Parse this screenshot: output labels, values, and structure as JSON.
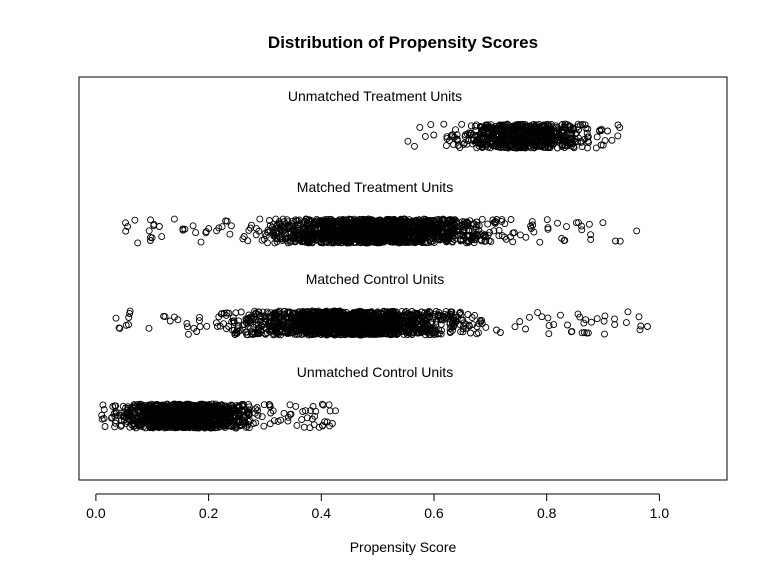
{
  "chart_data": {
    "type": "scatter",
    "title": "Distribution of Propensity Scores",
    "xlabel": "Propensity Score",
    "ylabel": "",
    "xlim": [
      -0.03,
      1.12
    ],
    "xticks": [
      0.0,
      0.2,
      0.4,
      0.6,
      0.8,
      1.0
    ],
    "xtick_labels": [
      "0.0",
      "0.2",
      "0.4",
      "0.6",
      "0.8",
      "1.0"
    ],
    "grid": false,
    "series": [
      {
        "name": "Unmatched Treatment Units",
        "count": 700,
        "range": [
          0.55,
          0.95
        ],
        "center": 0.76,
        "spread": 0.1
      },
      {
        "name": "Matched Treatment Units",
        "count": 1700,
        "range": [
          0.05,
          0.98
        ],
        "center": 0.5,
        "spread": 0.16
      },
      {
        "name": "Matched Control Units",
        "count": 1700,
        "range": [
          0.03,
          0.98
        ],
        "center": 0.45,
        "spread": 0.16
      },
      {
        "name": "Unmatched Control Units",
        "count": 1300,
        "range": [
          0.01,
          0.43
        ],
        "center": 0.16,
        "spread": 0.09
      }
    ]
  }
}
